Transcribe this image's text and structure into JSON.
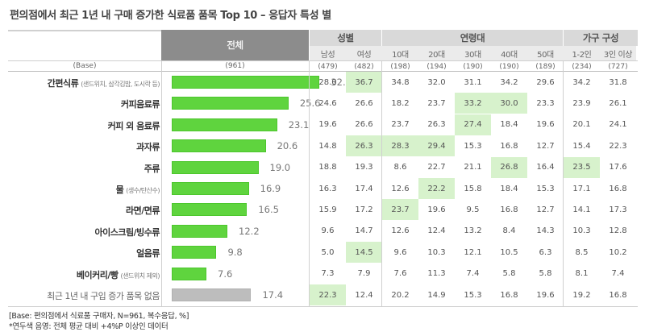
{
  "title": "편의점에서 최근 1년 내 구매 증가한 식료품 품목 Top 10 – 응답자 특성 별",
  "header": {
    "total_label": "전체",
    "groups": [
      {
        "label": "성별",
        "span": 2
      },
      {
        "label": "연령대",
        "span": 5
      },
      {
        "label": "가구 구성",
        "span": 2
      }
    ],
    "columns": [
      "남성",
      "여성",
      "10대",
      "20대",
      "30대",
      "40대",
      "50대",
      "1-2인",
      "3인 이상"
    ],
    "base_label": "(Base)",
    "base_total": "(961)",
    "base_columns": [
      "(479)",
      "(482)",
      "(198)",
      "(194)",
      "(190)",
      "(190)",
      "(189)",
      "(234)",
      "(727)"
    ]
  },
  "rows": [
    {
      "label": "간편식류",
      "note": "(샌드위치, 삼각김밥, 도시락 등)",
      "total": "32.4",
      "values": [
        "28.0",
        "36.7",
        "34.8",
        "32.0",
        "31.1",
        "34.2",
        "29.6",
        "34.2",
        "31.8"
      ],
      "highlight": [
        1
      ]
    },
    {
      "label": "커피음료류",
      "note": "",
      "total": "25.6",
      "values": [
        "24.6",
        "26.6",
        "18.2",
        "23.7",
        "33.2",
        "30.0",
        "23.3",
        "23.9",
        "26.1"
      ],
      "highlight": [
        4,
        5
      ]
    },
    {
      "label": "커피 외 음료류",
      "note": "",
      "total": "23.1",
      "values": [
        "19.6",
        "26.6",
        "23.7",
        "26.3",
        "27.4",
        "18.4",
        "19.6",
        "20.1",
        "24.1"
      ],
      "highlight": [
        4
      ]
    },
    {
      "label": "과자류",
      "note": "",
      "total": "20.6",
      "values": [
        "14.8",
        "26.3",
        "28.3",
        "29.4",
        "15.3",
        "16.8",
        "12.7",
        "15.4",
        "22.3"
      ],
      "highlight": [
        1,
        2,
        3
      ]
    },
    {
      "label": "주류",
      "note": "",
      "total": "19.0",
      "values": [
        "18.8",
        "19.3",
        "8.6",
        "22.7",
        "21.1",
        "26.8",
        "16.4",
        "23.5",
        "17.6"
      ],
      "highlight": [
        5,
        7
      ]
    },
    {
      "label": "물",
      "note": "(생수/탄산수)",
      "total": "16.9",
      "values": [
        "16.3",
        "17.4",
        "12.6",
        "22.2",
        "15.8",
        "18.4",
        "15.3",
        "17.1",
        "16.8"
      ],
      "highlight": [
        3
      ]
    },
    {
      "label": "라면/면류",
      "note": "",
      "total": "16.5",
      "values": [
        "15.9",
        "17.2",
        "23.7",
        "19.6",
        "9.5",
        "16.8",
        "12.7",
        "14.1",
        "17.3"
      ],
      "highlight": [
        2
      ]
    },
    {
      "label": "아이스크림/빙수류",
      "note": "",
      "total": "12.2",
      "values": [
        "9.6",
        "14.7",
        "12.6",
        "12.4",
        "13.2",
        "8.4",
        "14.3",
        "10.3",
        "12.8"
      ],
      "highlight": []
    },
    {
      "label": "얼음류",
      "note": "",
      "total": "9.8",
      "values": [
        "5.0",
        "14.5",
        "9.6",
        "10.3",
        "12.1",
        "10.5",
        "6.3",
        "8.5",
        "10.2"
      ],
      "highlight": [
        1
      ]
    },
    {
      "label": "베이커리/빵",
      "note": "(샌드위치 제외)",
      "total": "7.6",
      "values": [
        "7.3",
        "7.9",
        "7.6",
        "11.3",
        "7.4",
        "5.8",
        "5.8",
        "8.1",
        "7.4"
      ],
      "highlight": []
    },
    {
      "label": "최근 1년 내 구입 증가 품목 없음",
      "note": "",
      "total": "17.4",
      "values": [
        "22.3",
        "12.4",
        "20.2",
        "14.9",
        "15.3",
        "16.8",
        "19.6",
        "19.2",
        "16.8"
      ],
      "highlight": [
        0
      ],
      "plain": true
    }
  ],
  "footnotes": [
    "[Base: 편의점에서 식료품 구매자, N=961, 복수응답, %]",
    "*연두색 음영: 전체 평균 대비 +4%P 이상인 데이터"
  ],
  "colors": {
    "bar": "#5fd43e",
    "bar_none": "#bdbdbd",
    "highlight": "#d7f2cc",
    "header": "#d9d9d9",
    "header_total": "#8c8c8c"
  },
  "chart_data": {
    "type": "bar",
    "orientation": "horizontal",
    "title": "편의점에서 최근 1년 내 구매 증가한 식료품 품목 Top 10 – 응답자 특성 별",
    "unit": "%",
    "categories": [
      "간편식류 (샌드위치, 삼각김밥, 도시락 등)",
      "커피음료류",
      "커피 외 음료류",
      "과자류",
      "주류",
      "물 (생수/탄산수)",
      "라면/면류",
      "아이스크림/빙수류",
      "얼음류",
      "베이커리/빵 (샌드위치 제외)",
      "최근 1년 내 구입 증가 품목 없음"
    ],
    "values": [
      32.4,
      25.6,
      23.1,
      20.6,
      19.0,
      16.9,
      16.5,
      12.2,
      9.8,
      7.6,
      17.4
    ],
    "series": [
      {
        "name": "전체 (961)",
        "values": [
          32.4,
          25.6,
          23.1,
          20.6,
          19.0,
          16.9,
          16.5,
          12.2,
          9.8,
          7.6,
          17.4
        ]
      },
      {
        "name": "남성 (479)",
        "values": [
          28.0,
          24.6,
          19.6,
          14.8,
          18.8,
          16.3,
          15.9,
          9.6,
          5.0,
          7.3,
          22.3
        ]
      },
      {
        "name": "여성 (482)",
        "values": [
          36.7,
          26.6,
          26.6,
          26.3,
          19.3,
          17.4,
          17.2,
          14.7,
          14.5,
          7.9,
          12.4
        ]
      },
      {
        "name": "10대 (198)",
        "values": [
          34.8,
          18.2,
          23.7,
          28.3,
          8.6,
          12.6,
          23.7,
          12.6,
          9.6,
          7.6,
          20.2
        ]
      },
      {
        "name": "20대 (194)",
        "values": [
          32.0,
          23.7,
          26.3,
          29.4,
          22.7,
          22.2,
          19.6,
          12.4,
          10.3,
          11.3,
          14.9
        ]
      },
      {
        "name": "30대 (190)",
        "values": [
          31.1,
          33.2,
          27.4,
          15.3,
          21.1,
          15.8,
          9.5,
          13.2,
          12.1,
          7.4,
          15.3
        ]
      },
      {
        "name": "40대 (190)",
        "values": [
          34.2,
          30.0,
          18.4,
          16.8,
          26.8,
          18.4,
          16.8,
          8.4,
          10.5,
          5.8,
          16.8
        ]
      },
      {
        "name": "50대 (189)",
        "values": [
          29.6,
          23.3,
          19.6,
          12.7,
          16.4,
          15.3,
          12.7,
          14.3,
          6.3,
          5.8,
          19.6
        ]
      },
      {
        "name": "1-2인 (234)",
        "values": [
          34.2,
          23.9,
          20.1,
          15.4,
          23.5,
          17.1,
          14.1,
          10.3,
          8.5,
          8.1,
          19.2
        ]
      },
      {
        "name": "3인 이상 (727)",
        "values": [
          31.8,
          26.1,
          24.1,
          22.3,
          17.6,
          16.8,
          17.3,
          12.8,
          10.2,
          7.4,
          16.8
        ]
      }
    ],
    "annotations": [
      "[Base: 편의점에서 식료품 구매자, N=961, 복수응답, %]",
      "*연두색 음영: 전체 평균 대비 +4%P 이상인 데이터"
    ]
  }
}
